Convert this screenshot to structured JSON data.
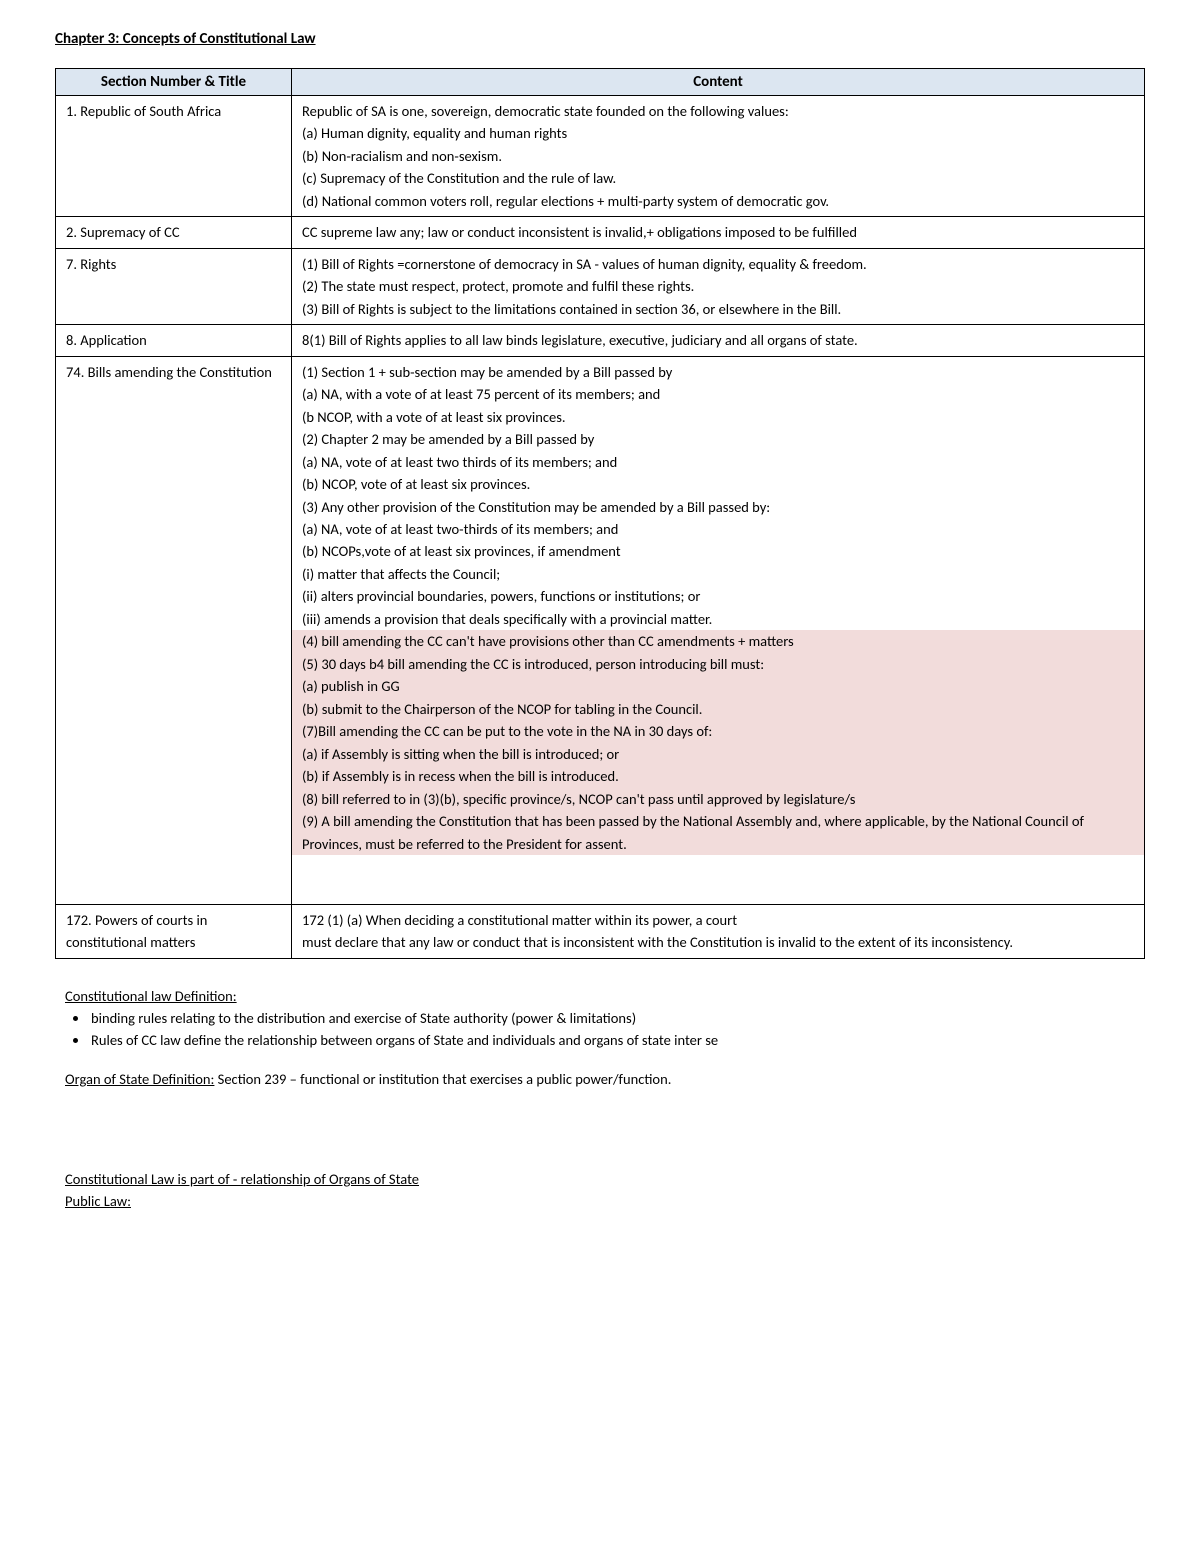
{
  "chapter_title": "Chapter 3: Concepts of Constitutional Law",
  "table": {
    "header_left": "Section Number & Title",
    "header_right": "Content",
    "header_bg": "#dce6f1",
    "highlight_bg": "#f2dcdb",
    "rows": [
      {
        "section": "1. Republic of South Africa",
        "lines": [
          "Republic of SA is one, sovereign, democratic state founded on the following values:",
          "(a) Human dignity, equality and human rights",
          "(b) Non-racialism and non-sexism.",
          "(c) Supremacy of the Constitution and the rule of law.",
          "(d) National common voters roll, regular elections + multi-party system of democratic gov."
        ]
      },
      {
        "section": "2. Supremacy of CC",
        "lines": [
          "CC supreme law any; law or conduct inconsistent is invalid,+ obligations imposed to be fulfilled"
        ]
      },
      {
        "section": "7. Rights",
        "lines": [
          "(1) Bill of Rights =cornerstone of democracy in SA - values of human dignity, equality & freedom.",
          "(2) The state must respect, protect, promote and fulfil these rights.",
          "(3) Bill of Rights is subject to the limitations contained in section 36, or elsewhere in the Bill."
        ]
      },
      {
        "section": "8. Application",
        "lines": [
          "8(1) Bill of Rights applies to all law binds legislature, executive, judiciary and all organs of state."
        ]
      },
      {
        "section": "74. Bills amending the Constitution",
        "lines_plain": [
          "(1) Section 1 + sub-section may be amended by a Bill passed by",
          "(a) NA, with a vote of at least 75 percent of its members; and",
          "(b NCOP, with a vote of at least six provinces.",
          "(2) Chapter 2 may be amended by a Bill passed by",
          "(a) NA, vote of at least two thirds of its members; and",
          "(b) NCOP, vote of at least six provinces.",
          "(3) Any other provision of the Constitution may be amended by a Bill passed by:",
          "(a) NA, vote of at least two-thirds of its members; and",
          "(b) NCOPs,vote of at least six provinces, if amendment",
          "(i) matter that affects the Council;",
          "(ii) alters provincial boundaries, powers, functions or institutions; or",
          "(iii) amends a provision that deals specifically with a provincial matter."
        ],
        "lines_highlight": [
          "(4) bill amending the CC can't have provisions other than CC amendments + matters",
          "(5) 30 days b4 bill amending the CC is introduced, person introducing bill must:",
          "(a) publish in GG",
          "(b) submit to the Chairperson of the NCOP for tabling in the Council.",
          "(7)Bill amending the CC can be put to the vote in the NA in 30 days of:",
          "(a) if Assembly is sitting when the bill is introduced; or",
          "(b) if Assembly is in recess when the bill is introduced.",
          "(8) bill referred to in (3)(b), specific province/s, NCOP can't pass until approved by legislature/s",
          "(9) A bill amending the Constitution that has been passed by the National Assembly and, where applicable, by the National Council of Provinces, must be referred to the President for assent."
        ]
      },
      {
        "section": "172. Powers of courts in constitutional matters",
        "lines": [
          "172 (1) (a) When deciding a constitutional matter within its power, a court",
          "must declare that any law or conduct that is inconsistent with the Constitution is invalid to the extent of its inconsistency."
        ]
      }
    ]
  },
  "definitions": {
    "const_law_heading": "Constitutional law Definition:",
    "bullets": [
      "binding rules relating to the distribution and exercise of State authority (power & limitations)",
      "Rules of CC law define the relationship between organs of State and individuals and organs of state inter se"
    ],
    "organ_label": "Organ of State Definition:",
    "organ_text": " Section 239 – functional or institution that exercises a public power/function.",
    "bottom1": "Constitutional Law is part of - relationship of Organs of State",
    "bottom2": "Public Law:"
  }
}
